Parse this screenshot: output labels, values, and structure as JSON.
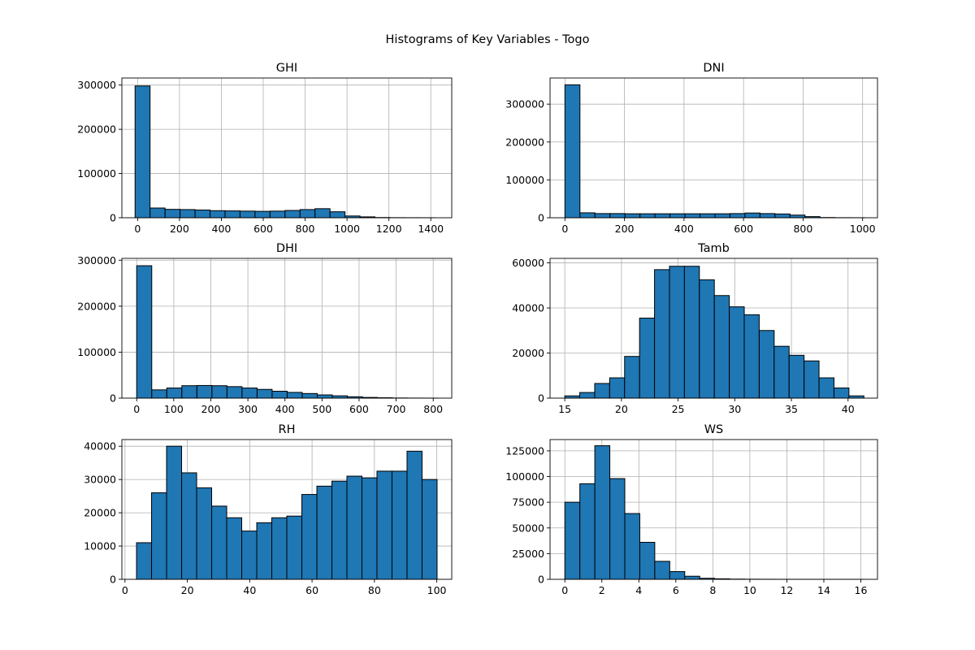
{
  "figure": {
    "title": "Histograms of Key Variables - Togo",
    "bar_color": "#1f77b4",
    "edge_color": "#000000",
    "grid_color": "#b0b0b0"
  },
  "chart_data": [
    {
      "type": "bar",
      "title": "GHI",
      "xlabel": "",
      "ylabel": "",
      "grid": true,
      "xlim": [
        -75,
        1500
      ],
      "ylim": [
        0,
        316000
      ],
      "bin_start": -12,
      "bin_width": 71.6,
      "values": [
        298000,
        22000,
        19000,
        18500,
        17500,
        16000,
        15500,
        15000,
        14500,
        15000,
        16500,
        18500,
        20500,
        13500,
        4000,
        2000,
        500,
        200,
        100,
        50
      ],
      "xticks": [
        0,
        200,
        400,
        600,
        800,
        1000,
        1200,
        1400
      ],
      "yticks": [
        0,
        100000,
        200000,
        300000
      ]
    },
    {
      "type": "bar",
      "title": "DNI",
      "xlabel": "",
      "ylabel": "",
      "grid": true,
      "xlim": [
        -50,
        1050
      ],
      "ylim": [
        0,
        369000
      ],
      "bin_start": 0,
      "bin_width": 50.4,
      "values": [
        351000,
        13000,
        11000,
        11000,
        10500,
        10500,
        10500,
        10500,
        10500,
        10500,
        10500,
        11000,
        12500,
        11000,
        10000,
        7000,
        3000,
        600,
        200,
        100
      ],
      "xticks": [
        0,
        200,
        400,
        600,
        800,
        1000
      ],
      "yticks": [
        0,
        100000,
        200000,
        300000
      ]
    },
    {
      "type": "bar",
      "title": "DHI",
      "xlabel": "",
      "ylabel": "",
      "grid": true,
      "xlim": [
        -40,
        850
      ],
      "ylim": [
        0,
        304000
      ],
      "bin_start": 0,
      "bin_width": 40.6,
      "values": [
        288000,
        18000,
        22000,
        27000,
        27500,
        27000,
        25000,
        22000,
        19000,
        15000,
        12500,
        10000,
        7000,
        5000,
        3000,
        1500,
        800,
        300,
        100,
        50
      ],
      "xticks": [
        0,
        100,
        200,
        300,
        400,
        500,
        600,
        700,
        800
      ],
      "yticks": [
        0,
        100000,
        200000,
        300000
      ]
    },
    {
      "type": "bar",
      "title": "Tamb",
      "xlabel": "",
      "ylabel": "",
      "grid": true,
      "xlim": [
        13.7,
        42.6
      ],
      "ylim": [
        0,
        62000
      ],
      "bin_start": 15.0,
      "bin_width": 1.32,
      "values": [
        1000,
        2500,
        6500,
        9000,
        18500,
        35500,
        57000,
        58500,
        58500,
        52500,
        45500,
        40500,
        37000,
        30000,
        23000,
        19000,
        16500,
        9000,
        4500,
        1000
      ],
      "xticks": [
        15,
        20,
        25,
        30,
        35,
        40
      ],
      "yticks": [
        0,
        20000,
        40000,
        60000
      ]
    },
    {
      "type": "bar",
      "title": "RH",
      "xlabel": "",
      "ylabel": "",
      "grid": true,
      "xlim": [
        -1,
        104.8
      ],
      "ylim": [
        0,
        42000
      ],
      "bin_start": 3.7,
      "bin_width": 4.82,
      "values": [
        11000,
        26000,
        40000,
        32000,
        27500,
        22000,
        18500,
        14500,
        17000,
        18500,
        19000,
        25500,
        28000,
        29500,
        31000,
        30500,
        32500,
        32500,
        38500,
        30000
      ],
      "xticks": [
        0,
        20,
        40,
        60,
        80,
        100
      ],
      "yticks": [
        0,
        10000,
        20000,
        30000,
        40000
      ]
    },
    {
      "type": "bar",
      "title": "WS",
      "xlabel": "",
      "ylabel": "",
      "grid": true,
      "xlim": [
        -0.8,
        16.9
      ],
      "ylim": [
        0,
        136000
      ],
      "bin_start": 0,
      "bin_width": 0.81,
      "values": [
        75000,
        93000,
        130000,
        98000,
        64000,
        36000,
        17500,
        7500,
        3000,
        1000,
        500,
        200,
        100,
        50,
        30,
        20,
        10,
        5,
        5,
        5
      ],
      "xticks": [
        0,
        2,
        4,
        6,
        8,
        10,
        12,
        14,
        16
      ],
      "yticks": [
        0,
        25000,
        50000,
        75000,
        100000,
        125000
      ]
    }
  ]
}
